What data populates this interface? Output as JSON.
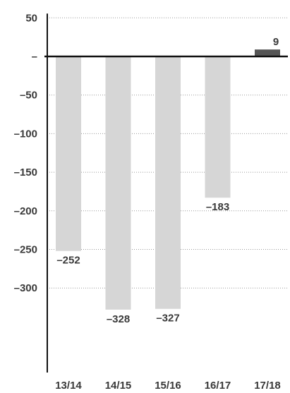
{
  "chart_data": {
    "type": "bar",
    "categories": [
      "13/14",
      "14/15",
      "15/16",
      "16/17",
      "17/18"
    ],
    "values": [
      -252,
      -328,
      -327,
      -183,
      9
    ],
    "data_labels": [
      "–252",
      "–328",
      "–327",
      "–183",
      "9"
    ],
    "y_ticks": [
      50,
      0,
      -50,
      -100,
      -150,
      -200,
      -250,
      -300
    ],
    "y_tick_labels": [
      "50",
      "–",
      "–50",
      "–100",
      "–150",
      "–200",
      "–250",
      "–300"
    ],
    "ylim": [
      -420,
      50
    ],
    "grid": true,
    "title": "",
    "xlabel": "",
    "ylabel": "",
    "colors": {
      "negative_bar": "#d6d6d6",
      "positive_bar": "#555555",
      "axis": "#111111",
      "grid": "#9a9a9a",
      "text": "#3a3a3a"
    }
  }
}
